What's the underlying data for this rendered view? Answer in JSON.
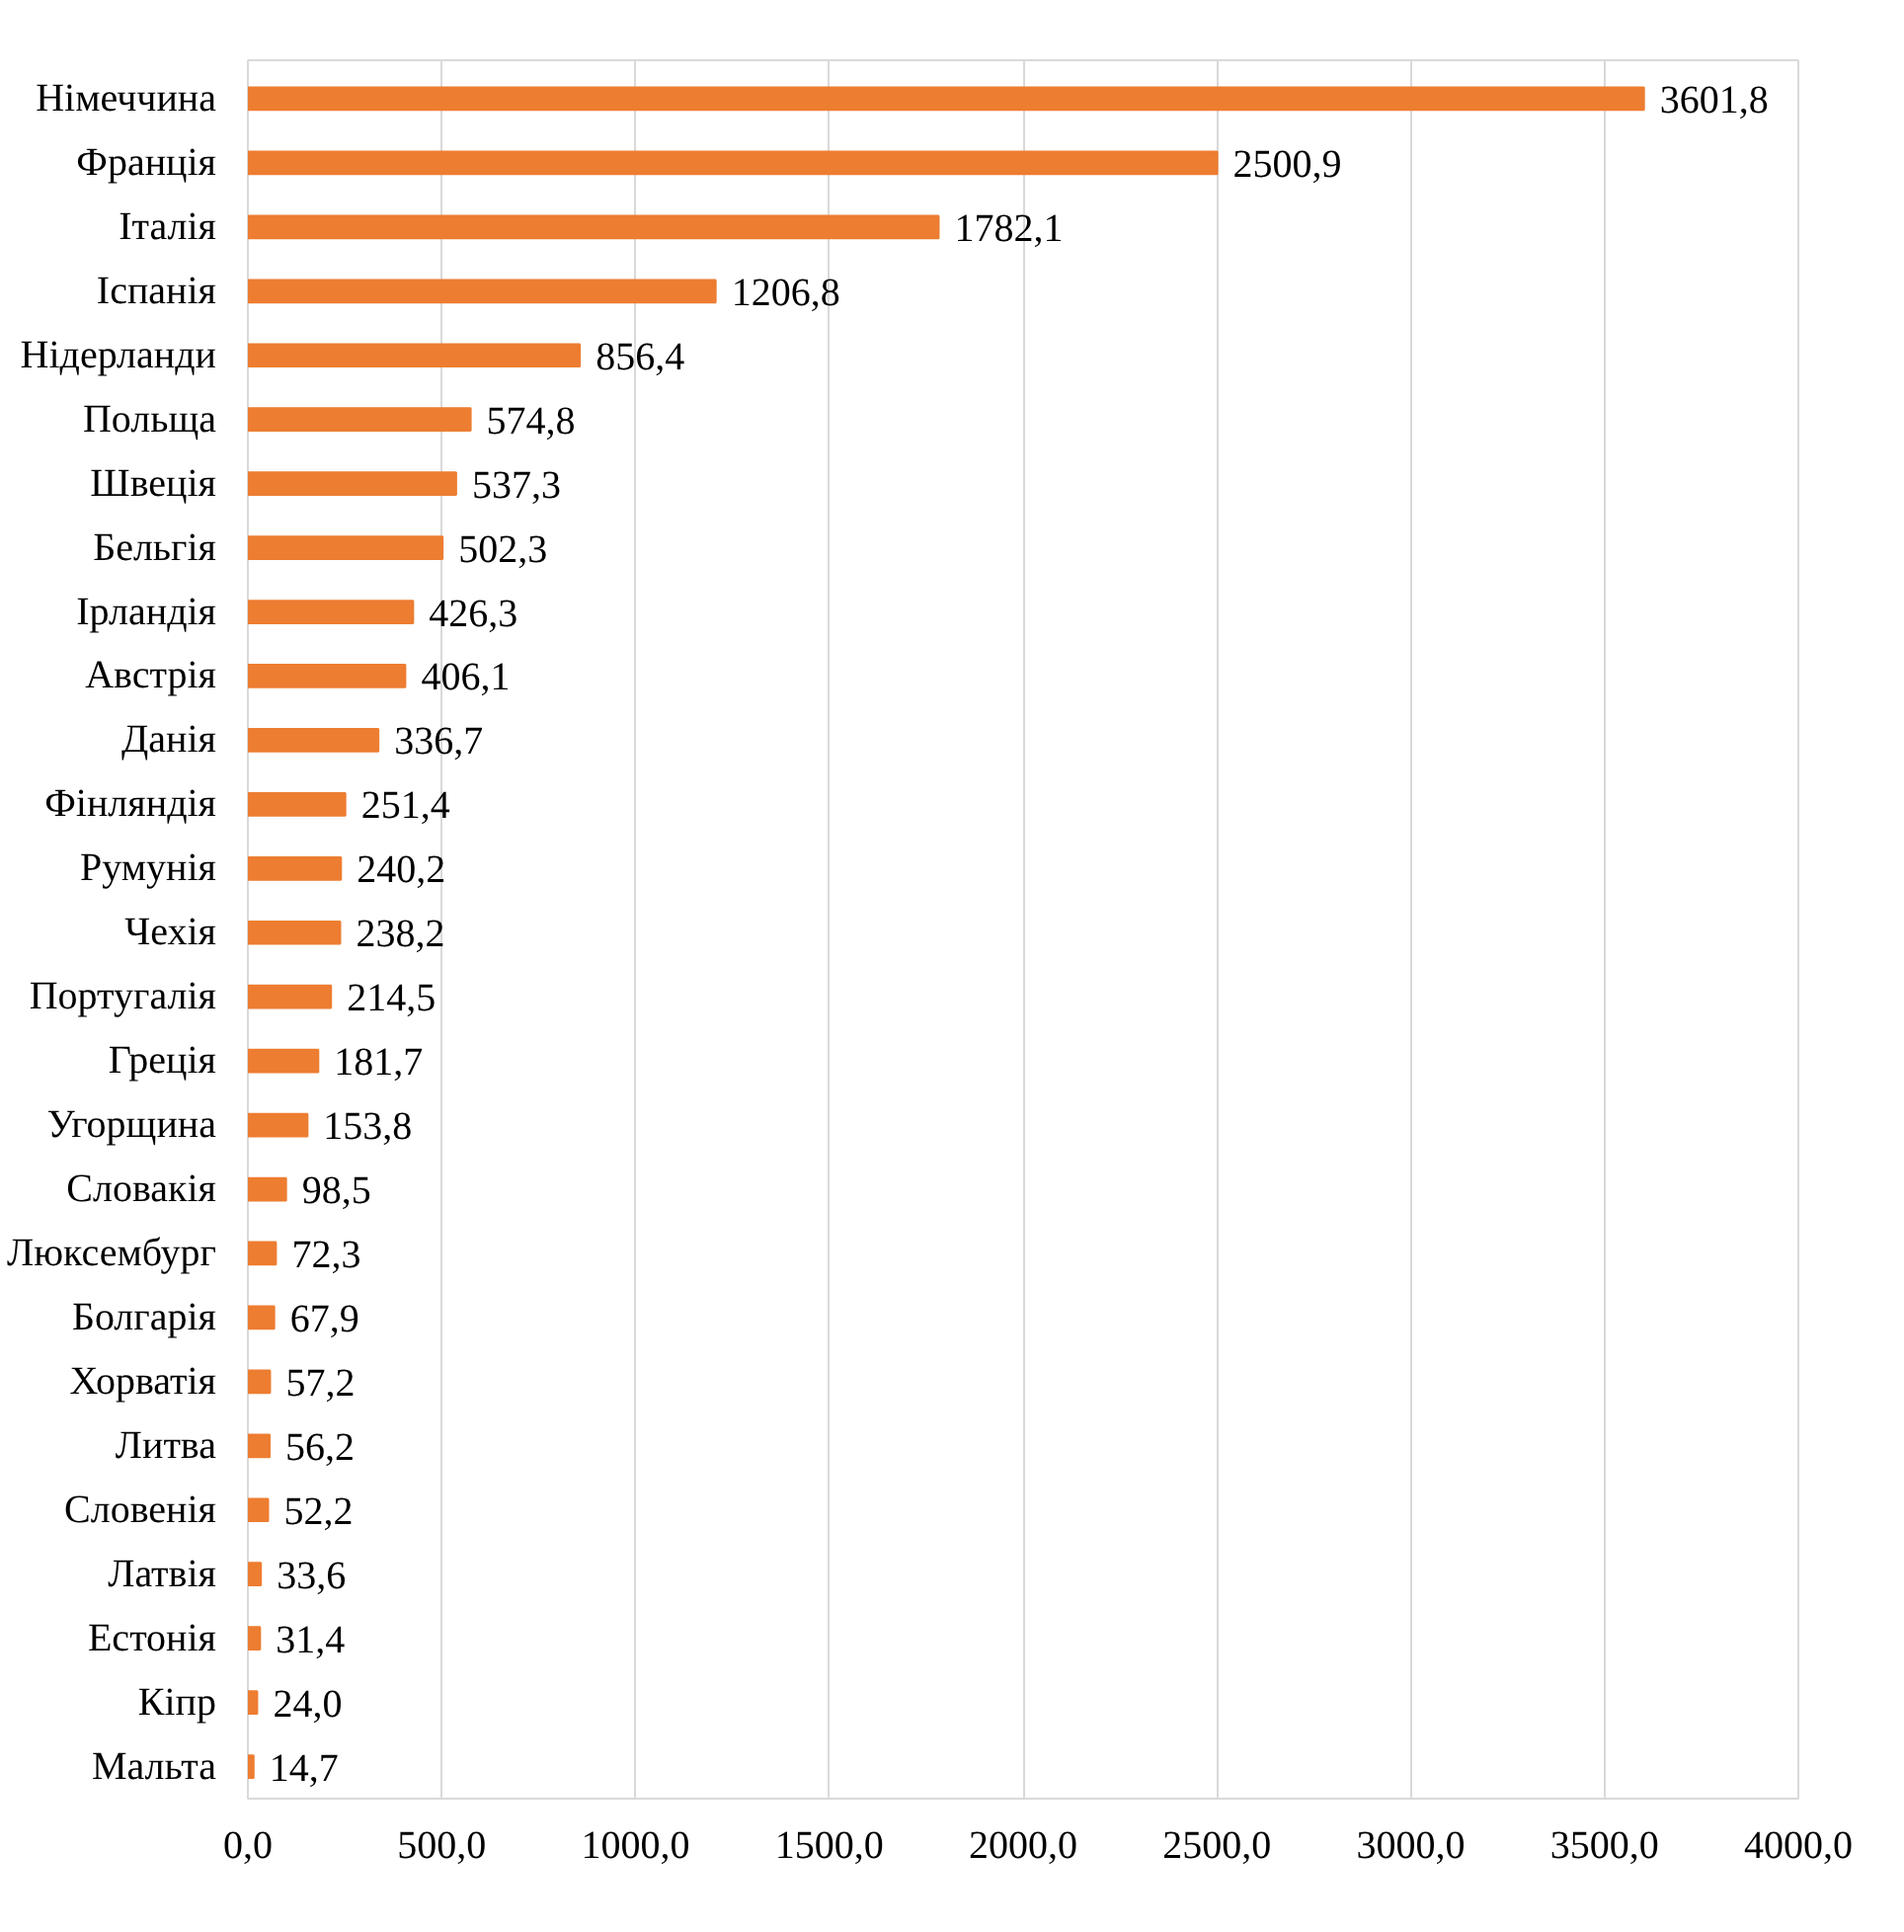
{
  "chart_data": {
    "type": "bar",
    "orientation": "horizontal",
    "categories": [
      "Німеччина",
      "Франція",
      "Італія",
      "Іспанія",
      "Нідерланди",
      "Польща",
      "Швеція",
      "Бельгія",
      "Ірландія",
      "Австрія",
      "Данія",
      "Фінляндія",
      "Румунія",
      "Чехія",
      "Португалія",
      "Греція",
      "Угорщина",
      "Словакія",
      "Люксембург",
      "Болгарія",
      "Хорватія",
      "Литва",
      "Словенія",
      "Латвія",
      "Естонія",
      "Кіпр",
      "Мальта"
    ],
    "values": [
      3601.8,
      2500.9,
      1782.1,
      1206.8,
      856.4,
      574.8,
      537.3,
      502.3,
      426.3,
      406.1,
      336.7,
      251.4,
      240.2,
      238.2,
      214.5,
      181.7,
      153.8,
      98.5,
      72.3,
      67.9,
      57.2,
      56.2,
      52.2,
      33.6,
      31.4,
      24.0,
      14.7
    ],
    "value_labels": [
      "3601,8",
      "2500,9",
      "1782,1",
      "1206,8",
      "856,4",
      "574,8",
      "537,3",
      "502,3",
      "426,3",
      "406,1",
      "336,7",
      "251,4",
      "240,2",
      "238,2",
      "214,5",
      "181,7",
      "153,8",
      "98,5",
      "72,3",
      "67,9",
      "57,2",
      "56,2",
      "52,2",
      "33,6",
      "31,4",
      "24,0",
      "14,7"
    ],
    "color": "#ed7d31",
    "xlim": [
      0,
      4000
    ],
    "xticks": [
      {
        "value": 0,
        "label": "0,0"
      },
      {
        "value": 500,
        "label": "500,0"
      },
      {
        "value": 1000,
        "label": "1000,0"
      },
      {
        "value": 1500,
        "label": "1500,0"
      },
      {
        "value": 2000,
        "label": "2000,0"
      },
      {
        "value": 2500,
        "label": "2500,0"
      },
      {
        "value": 3000,
        "label": "3000,0"
      },
      {
        "value": 3500,
        "label": "3500,0"
      },
      {
        "value": 4000,
        "label": "4000,0"
      }
    ],
    "grid": "x"
  }
}
